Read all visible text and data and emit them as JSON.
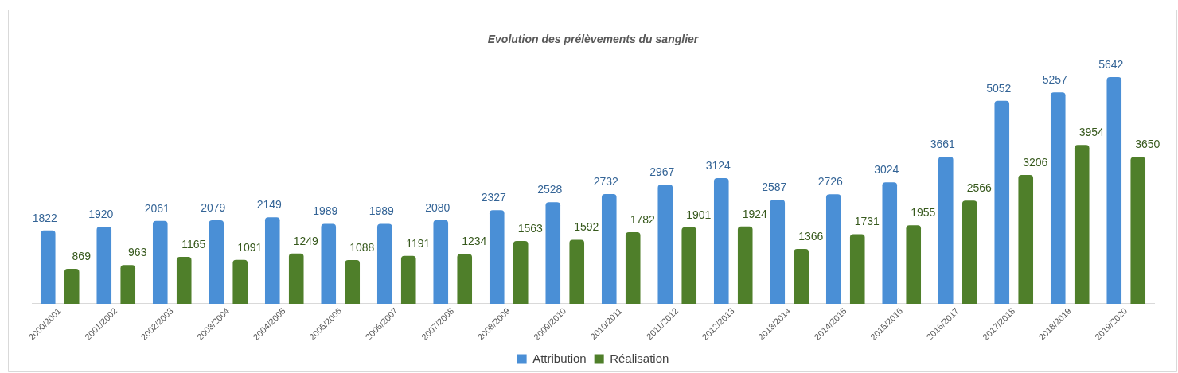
{
  "chart_data": {
    "type": "bar",
    "title": "Evolution des prélèvements du sanglier",
    "categories": [
      "2000/2001",
      "2001/2002",
      "2002/2003",
      "2003/2004",
      "2004/2005",
      "2005/2006",
      "2006/2007",
      "2007/2008",
      "2008/2009",
      "2009/2010",
      "2010/2011",
      "2011/2012",
      "2012/2013",
      "2013/2014",
      "2014/2015",
      "2015/2016",
      "2016/2017",
      "2017/2018",
      "2018/2019",
      "2019/2020"
    ],
    "series": [
      {
        "name": "Attribution",
        "color": "#4a8fd6",
        "values": [
          1822,
          1920,
          2061,
          2079,
          2149,
          1989,
          1989,
          2080,
          2327,
          2528,
          2732,
          2967,
          3124,
          2587,
          2726,
          3024,
          3661,
          5052,
          5257,
          5642
        ]
      },
      {
        "name": "Réalisation",
        "color": "#4f7f2a",
        "values": [
          869,
          963,
          1165,
          1091,
          1249,
          1088,
          1191,
          1234,
          1563,
          1592,
          1782,
          1901,
          1924,
          1366,
          1731,
          1955,
          2566,
          3206,
          3954,
          3650
        ]
      }
    ],
    "data_labels": true,
    "legend": "bottom",
    "grid": false
  }
}
